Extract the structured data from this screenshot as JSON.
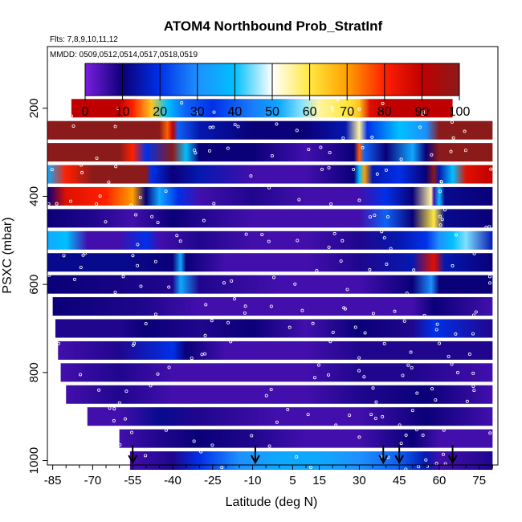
{
  "chart_data": {
    "type": "heatmap",
    "title": "ATOM4 Northbound Prob_StratInf",
    "annotations": [
      "Flts: 7,8,9,10,11,12",
      "MMDD: 0509,0512,0514,0517,0518,0519"
    ],
    "xlabel": "Latitude (deg N)",
    "ylabel": "PSXC (mbar)",
    "xlim": [
      -87,
      82
    ],
    "ylim": [
      1010,
      60
    ],
    "x_ticks": [
      -85,
      -70,
      -55,
      -40,
      -25,
      -10,
      5,
      15,
      30,
      45,
      60,
      75
    ],
    "x_minor_ticks": [
      -80,
      -75,
      -65,
      -60,
      -50,
      -45,
      -35,
      -30,
      -20,
      -15,
      -5,
      0,
      10,
      20,
      25,
      35,
      40,
      50,
      55,
      65,
      70,
      80
    ],
    "y_ticks": [
      200,
      400,
      600,
      800,
      1000
    ],
    "colorbar": {
      "min": 0,
      "max": 100,
      "ticks": [
        0,
        10,
        20,
        30,
        40,
        50,
        60,
        70,
        80,
        90,
        100
      ],
      "colors": [
        "#7a1ee0",
        "#0a0078",
        "#0030e8",
        "#1e90ff",
        "#00c0ff",
        "#ffffff",
        "#ffe840",
        "#ffa000",
        "#ff2000",
        "#c00000",
        "#8b1a1a"
      ]
    },
    "pressure_levels": [
      200,
      250,
      300,
      350,
      400,
      450,
      500,
      550,
      600,
      650,
      700,
      750,
      800,
      850,
      900,
      950,
      1000
    ],
    "layers": [
      {
        "p": 200,
        "x0": -78,
        "x1": 65,
        "stops": [
          [
            -78,
            90
          ],
          [
            -60,
            90
          ],
          [
            -55,
            80
          ],
          [
            -48,
            65
          ],
          [
            -42,
            40
          ],
          [
            -35,
            25
          ],
          [
            -25,
            20
          ],
          [
            -10,
            28
          ],
          [
            0,
            35
          ],
          [
            8,
            45
          ],
          [
            15,
            55
          ],
          [
            25,
            60
          ],
          [
            30,
            65
          ],
          [
            34,
            85
          ],
          [
            40,
            90
          ],
          [
            65,
            90
          ]
        ]
      },
      {
        "p": 250,
        "x0": -87,
        "x1": 80,
        "stops": [
          [
            -87,
            100
          ],
          [
            -45,
            100
          ],
          [
            -42,
            75
          ],
          [
            -40,
            90
          ],
          [
            -38,
            25
          ],
          [
            -30,
            15
          ],
          [
            -10,
            10
          ],
          [
            10,
            10
          ],
          [
            25,
            15
          ],
          [
            30,
            55
          ],
          [
            33,
            20
          ],
          [
            45,
            40
          ],
          [
            55,
            30
          ],
          [
            60,
            100
          ],
          [
            80,
            100
          ]
        ]
      },
      {
        "p": 300,
        "x0": -87,
        "x1": 80,
        "stops": [
          [
            -87,
            100
          ],
          [
            -60,
            100
          ],
          [
            -55,
            80
          ],
          [
            -50,
            20
          ],
          [
            -40,
            100
          ],
          [
            -35,
            40
          ],
          [
            -30,
            10
          ],
          [
            -10,
            10
          ],
          [
            10,
            5
          ],
          [
            28,
            10
          ],
          [
            30,
            75
          ],
          [
            32,
            25
          ],
          [
            40,
            10
          ],
          [
            50,
            35
          ],
          [
            55,
            10
          ],
          [
            60,
            100
          ],
          [
            80,
            100
          ]
        ]
      },
      {
        "p": 350,
        "x0": -87,
        "x1": 80,
        "stops": [
          [
            -87,
            35
          ],
          [
            -80,
            80
          ],
          [
            -70,
            100
          ],
          [
            -50,
            100
          ],
          [
            -48,
            20
          ],
          [
            -40,
            10
          ],
          [
            -30,
            15
          ],
          [
            -10,
            5
          ],
          [
            10,
            5
          ],
          [
            28,
            10
          ],
          [
            30,
            40
          ],
          [
            32,
            70
          ],
          [
            35,
            15
          ],
          [
            45,
            20
          ],
          [
            55,
            10
          ],
          [
            58,
            100
          ],
          [
            60,
            15
          ],
          [
            65,
            40
          ],
          [
            70,
            85
          ],
          [
            80,
            90
          ]
        ]
      },
      {
        "p": 400,
        "x0": -87,
        "x1": 80,
        "stops": [
          [
            -87,
            10
          ],
          [
            -80,
            85
          ],
          [
            -65,
            80
          ],
          [
            -55,
            70
          ],
          [
            -50,
            10
          ],
          [
            -45,
            35
          ],
          [
            -38,
            20
          ],
          [
            -30,
            5
          ],
          [
            -10,
            8
          ],
          [
            10,
            5
          ],
          [
            30,
            5
          ],
          [
            40,
            20
          ],
          [
            50,
            10
          ],
          [
            57,
            55
          ],
          [
            58,
            5
          ],
          [
            60,
            40
          ],
          [
            62,
            12
          ],
          [
            80,
            10
          ]
        ]
      },
      {
        "p": 450,
        "x0": -87,
        "x1": 80,
        "stops": [
          [
            -87,
            10
          ],
          [
            -70,
            8
          ],
          [
            -55,
            5
          ],
          [
            -40,
            10
          ],
          [
            -30,
            8
          ],
          [
            -10,
            5
          ],
          [
            10,
            5
          ],
          [
            30,
            5
          ],
          [
            40,
            25
          ],
          [
            50,
            10
          ],
          [
            58,
            60
          ],
          [
            62,
            12
          ],
          [
            80,
            10
          ]
        ]
      },
      {
        "p": 500,
        "x0": -87,
        "x1": 80,
        "stops": [
          [
            -87,
            35
          ],
          [
            -80,
            40
          ],
          [
            -72,
            5
          ],
          [
            -60,
            5
          ],
          [
            -50,
            20
          ],
          [
            -45,
            5
          ],
          [
            -30,
            8
          ],
          [
            -10,
            5
          ],
          [
            10,
            5
          ],
          [
            30,
            8
          ],
          [
            45,
            15
          ],
          [
            55,
            20
          ],
          [
            60,
            30
          ],
          [
            65,
            40
          ],
          [
            70,
            45
          ],
          [
            80,
            15
          ]
        ]
      },
      {
        "p": 550,
        "x0": -87,
        "x1": 80,
        "stops": [
          [
            -87,
            12
          ],
          [
            -60,
            12
          ],
          [
            -40,
            10
          ],
          [
            -37,
            35
          ],
          [
            -35,
            10
          ],
          [
            -20,
            5
          ],
          [
            10,
            5
          ],
          [
            30,
            8
          ],
          [
            50,
            15
          ],
          [
            58,
            85
          ],
          [
            62,
            15
          ],
          [
            80,
            10
          ]
        ]
      },
      {
        "p": 600,
        "x0": -87,
        "x1": 80,
        "stops": [
          [
            -87,
            10
          ],
          [
            -40,
            8
          ],
          [
            -37,
            35
          ],
          [
            -30,
            8
          ],
          [
            0,
            5
          ],
          [
            30,
            5
          ],
          [
            50,
            10
          ],
          [
            57,
            30
          ],
          [
            60,
            10
          ],
          [
            80,
            10
          ]
        ]
      },
      {
        "p": 650,
        "x0": -85,
        "x1": 80,
        "stops": [
          [
            -85,
            10
          ],
          [
            -50,
            8
          ],
          [
            -30,
            5
          ],
          [
            0,
            5
          ],
          [
            30,
            5
          ],
          [
            50,
            5
          ],
          [
            58,
            10
          ],
          [
            80,
            5
          ]
        ]
      },
      {
        "p": 700,
        "x0": -84,
        "x1": 80,
        "stops": [
          [
            -84,
            8
          ],
          [
            -60,
            8
          ],
          [
            -50,
            10
          ],
          [
            -30,
            8
          ],
          [
            -10,
            10
          ],
          [
            10,
            5
          ],
          [
            30,
            10
          ],
          [
            50,
            8
          ],
          [
            58,
            20
          ],
          [
            80,
            8
          ]
        ]
      },
      {
        "p": 750,
        "x0": -83,
        "x1": 80,
        "stops": [
          [
            -83,
            5
          ],
          [
            -60,
            8
          ],
          [
            -40,
            20
          ],
          [
            -35,
            10
          ],
          [
            -20,
            5
          ],
          [
            10,
            5
          ],
          [
            30,
            8
          ],
          [
            50,
            8
          ],
          [
            80,
            8
          ]
        ]
      },
      {
        "p": 800,
        "x0": -82,
        "x1": 80,
        "stops": [
          [
            -82,
            5
          ],
          [
            -60,
            8
          ],
          [
            -40,
            5
          ],
          [
            -20,
            5
          ],
          [
            10,
            5
          ],
          [
            30,
            8
          ],
          [
            50,
            8
          ],
          [
            80,
            5
          ]
        ]
      },
      {
        "p": 850,
        "x0": -80,
        "x1": 80,
        "stops": [
          [
            -80,
            5
          ],
          [
            -60,
            8
          ],
          [
            -40,
            5
          ],
          [
            -20,
            5
          ],
          [
            10,
            5
          ],
          [
            30,
            8
          ],
          [
            55,
            10
          ],
          [
            80,
            5
          ]
        ]
      },
      {
        "p": 900,
        "x0": -72,
        "x1": 80,
        "stops": [
          [
            -72,
            5
          ],
          [
            -60,
            5
          ],
          [
            -45,
            12
          ],
          [
            -30,
            8
          ],
          [
            0,
            5
          ],
          [
            30,
            5
          ],
          [
            55,
            10
          ],
          [
            80,
            5
          ]
        ]
      },
      {
        "p": 950,
        "x0": -60,
        "x1": 80,
        "stops": [
          [
            -60,
            5
          ],
          [
            -45,
            8
          ],
          [
            -30,
            10
          ],
          [
            -10,
            8
          ],
          [
            10,
            5
          ],
          [
            30,
            5
          ],
          [
            50,
            10
          ],
          [
            60,
            5
          ],
          [
            80,
            5
          ]
        ]
      },
      {
        "p": 1000,
        "x0": -56,
        "x1": 80,
        "stops": [
          [
            -56,
            5
          ],
          [
            -40,
            8
          ],
          [
            -30,
            20
          ],
          [
            -15,
            30
          ],
          [
            0,
            35
          ],
          [
            15,
            35
          ],
          [
            30,
            30
          ],
          [
            45,
            25
          ],
          [
            55,
            15
          ],
          [
            60,
            5
          ],
          [
            80,
            8
          ]
        ]
      }
    ],
    "arrow_latitudes": [
      -55,
      -9,
      39,
      45,
      65
    ]
  }
}
